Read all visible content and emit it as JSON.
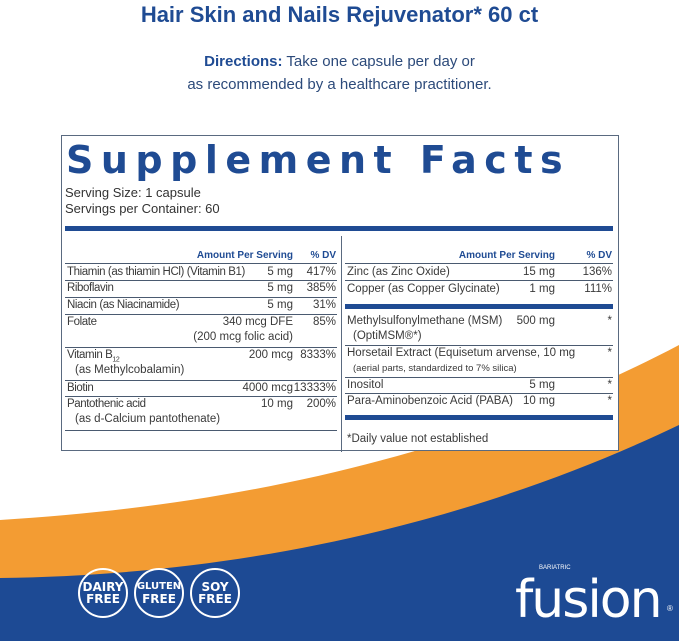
{
  "title": "Hair Skin and Nails Rejuvenator* 60 ct",
  "directions": {
    "label": "Directions:",
    "line1": "Take one capsule per day or",
    "line2": "as recommended by a healthcare practitioner."
  },
  "facts": {
    "heading": "Supplement Facts",
    "serving_size": "Serving Size: 1 capsule",
    "servings_per_container": "Servings per Container: 60",
    "col_amount": "Amount Per Serving",
    "col_dv": "% DV",
    "left": [
      {
        "name": "Thiamin (as thiamin HCl) (Vitamin B1)",
        "amount": "5 mg",
        "dv": "417%"
      },
      {
        "name": "Riboflavin",
        "amount": "5 mg",
        "dv": "385%"
      },
      {
        "name": "Niacin (as Niacinamide)",
        "amount": "5 mg",
        "dv": "31%"
      },
      {
        "name": "Folate",
        "amount": "340 mcg DFE",
        "sub": "(200 mcg folic acid)",
        "dv": "85%"
      },
      {
        "name": "Vitamin B",
        "subscript": "12",
        "amount": "200 mcg",
        "sub": "(as Methylcobalamin)",
        "dv": "8333%"
      },
      {
        "name": "Biotin",
        "amount": "4000 mcg",
        "dv": "13333%"
      },
      {
        "name": "Pantothenic acid",
        "amount": "10 mg",
        "sub": "(as d-Calcium pantothenate)",
        "dv": "200%"
      }
    ],
    "right": [
      {
        "name": "Zinc (as Zinc Oxide)",
        "amount": "15 mg",
        "dv": "136%"
      },
      {
        "name": "Copper (as Copper Glycinate)",
        "amount": "1 mg",
        "dv": "111%"
      },
      {
        "name": "Methylsulfonylmethane (MSM)",
        "amount": "500 mg",
        "sub": "(OptiMSM®*)",
        "dv": "*"
      },
      {
        "name": "Horsetail Extract (Equisetum arvense, 10 mg",
        "sub": "(aerial parts, standardized to 7% silica)",
        "dv": "*"
      },
      {
        "name": "Inositol",
        "amount": "5 mg",
        "dv": "*"
      },
      {
        "name": "Para-Aminobenzoic Acid (PABA)",
        "amount": "10 mg",
        "dv": "*"
      }
    ],
    "footnote": "*Daily value not established"
  },
  "badges": [
    {
      "line1": "DAIRY",
      "line2": "FREE"
    },
    {
      "line1": "GLUTEN",
      "line2": "FREE"
    },
    {
      "line1": "SOY",
      "line2": "FREE"
    }
  ],
  "logo": {
    "prefix": "BARIATRIC",
    "brand": "fusion",
    "reg": "®"
  },
  "colors": {
    "blue": "#1f4b93",
    "orange": "#f39c33"
  }
}
